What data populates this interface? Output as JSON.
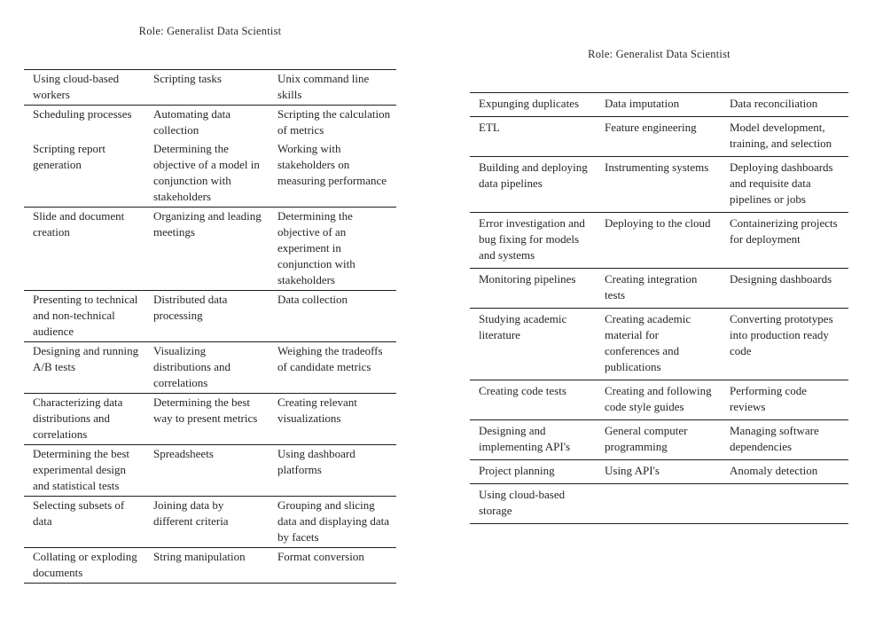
{
  "document": {
    "pages": [
      {
        "title": "Role: Generalist Data Scientist",
        "table": {
          "rows": [
            {
              "divider": true,
              "cells": [
                "Using cloud-based workers",
                "Scripting tasks",
                "Unix command line skills"
              ]
            },
            {
              "divider": false,
              "cells": [
                "Scheduling processes",
                "Automating data collection",
                "Scripting the calculation of metrics"
              ]
            },
            {
              "divider": true,
              "cells": [
                "Scripting report generation",
                "Determining the objective of a model in conjunction with stakeholders",
                "Working with stakeholders on measuring performance"
              ]
            },
            {
              "divider": true,
              "cells": [
                "Slide and document creation",
                "Organizing and leading meetings",
                "Determining the objective of an experiment in conjunction with stakeholders"
              ]
            },
            {
              "divider": true,
              "cells": [
                "Presenting to technical and non-technical audience",
                "Distributed data processing",
                "Data collection"
              ]
            },
            {
              "divider": true,
              "cells": [
                "Designing and running A/B tests",
                "Visualizing distributions and correlations",
                "Weighing the tradeoffs of candidate metrics"
              ]
            },
            {
              "divider": true,
              "cells": [
                "Characterizing data distributions and correlations",
                "Determining the best way to present metrics",
                "Creating relevant visualizations"
              ]
            },
            {
              "divider": true,
              "cells": [
                "Determining the best experimental design and statistical tests",
                "Spreadsheets",
                "Using dashboard platforms"
              ]
            },
            {
              "divider": true,
              "cells": [
                "Selecting subsets of data",
                "Joining data by different criteria",
                "Grouping and slicing data and displaying data by facets"
              ]
            },
            {
              "divider": true,
              "cells": [
                "Collating or exploding documents",
                "String manipulation",
                "Format conversion"
              ]
            }
          ]
        }
      },
      {
        "title": "Role: Generalist Data Scientist",
        "table": {
          "rows": [
            {
              "divider": true,
              "cells": [
                "Expunging duplicates",
                "Data imputation",
                "Data reconciliation"
              ]
            },
            {
              "divider": true,
              "cells": [
                "ETL",
                "Feature engineering",
                "Model development, training, and selection"
              ]
            },
            {
              "divider": true,
              "cells": [
                "Building and deploying data pipelines",
                "Instrumenting systems",
                "Deploying dashboards and requisite data pipelines or jobs"
              ]
            },
            {
              "divider": true,
              "cells": [
                "Error investigation and bug fixing for models and systems",
                "Deploying to the cloud",
                "Containerizing projects for deployment"
              ]
            },
            {
              "divider": true,
              "cells": [
                "Monitoring pipelines",
                "Creating integration tests",
                "Designing dashboards"
              ]
            },
            {
              "divider": true,
              "cells": [
                "Studying academic literature",
                "Creating academic material for conferences and publications",
                "Converting prototypes into production ready code"
              ]
            },
            {
              "divider": true,
              "cells": [
                "Creating code tests",
                "Creating and following code style guides",
                "Performing code reviews"
              ]
            },
            {
              "divider": true,
              "cells": [
                "Designing and implementing API's",
                "General computer programming",
                "Managing software dependencies"
              ]
            },
            {
              "divider": true,
              "cells": [
                "Project planning",
                "Using API's",
                "Anomaly detection"
              ]
            },
            {
              "divider": true,
              "cells": [
                "Using cloud-based storage",
                "",
                ""
              ]
            }
          ]
        }
      }
    ]
  }
}
